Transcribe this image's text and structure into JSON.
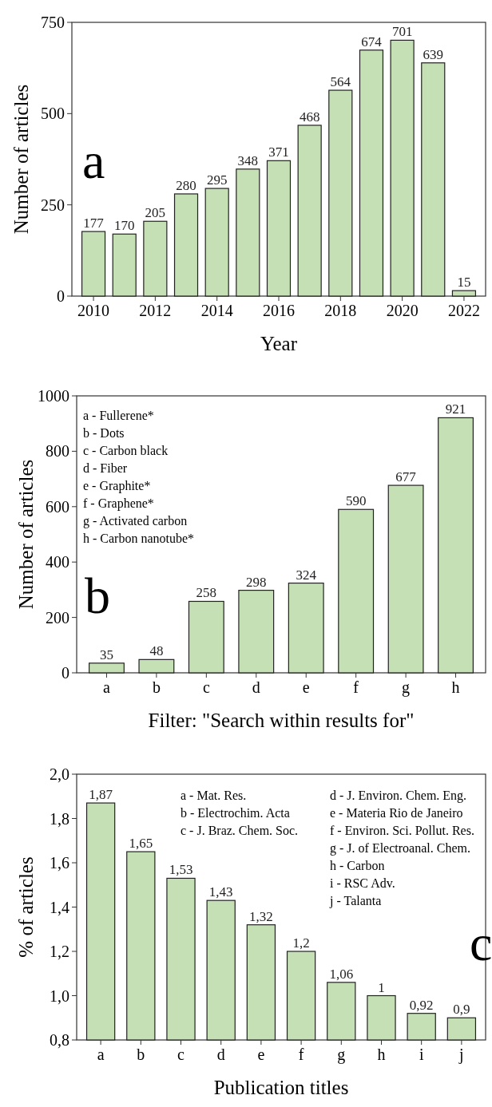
{
  "chart_data": [
    {
      "type": "bar",
      "xlabel": "Year",
      "ylabel": "Number of articles",
      "x": [
        2010,
        2011,
        2012,
        2013,
        2014,
        2015,
        2016,
        2017,
        2018,
        2019,
        2020,
        2021,
        2022
      ],
      "values": [
        177,
        170,
        205,
        280,
        295,
        348,
        371,
        468,
        564,
        674,
        701,
        639,
        15
      ],
      "color": "#c5e0b4",
      "data_labels": true,
      "xlim": [
        2009.3,
        2022.7
      ],
      "xticks": [
        2010,
        2012,
        2014,
        2016,
        2018,
        2020,
        2022
      ],
      "ylim": [
        0,
        750
      ],
      "yticks": [
        0,
        250,
        500,
        750
      ],
      "annotations": [
        "a"
      ]
    },
    {
      "type": "bar",
      "xlabel": "Filter: \"Search within results for\"",
      "ylabel": "Number of articles",
      "categories": [
        "a",
        "b",
        "c",
        "d",
        "e",
        "f",
        "g",
        "h"
      ],
      "values": [
        35,
        48,
        258,
        298,
        324,
        590,
        677,
        921
      ],
      "color": "#c5e0b4",
      "data_labels": true,
      "ylim": [
        0,
        1000
      ],
      "yticks": [
        0,
        200,
        400,
        600,
        800,
        1000
      ],
      "annotations": [
        "b",
        "a - Fullerene*",
        "b - Dots",
        "c - Carbon black",
        "d - Fiber",
        "e - Graphite*",
        "f - Graphene*",
        "g - Activated carbon",
        "h - Carbon nanotube*"
      ]
    },
    {
      "type": "bar",
      "xlabel": "Publication titles",
      "ylabel": "% of articles",
      "categories": [
        "a",
        "b",
        "c",
        "d",
        "e",
        "f",
        "g",
        "h",
        "i",
        "j"
      ],
      "values": [
        1.87,
        1.65,
        1.53,
        1.43,
        1.32,
        1.2,
        1.06,
        1.0,
        0.92,
        0.9
      ],
      "value_labels": [
        "1,87",
        "1,65",
        "1,53",
        "1,43",
        "1,32",
        "1,2",
        "1,06",
        "1",
        "0,92",
        "0,9"
      ],
      "color": "#c5e0b4",
      "ylim": [
        0.8,
        2.0
      ],
      "yticks": [
        {
          "value": 0.8,
          "label": "0,8"
        },
        {
          "value": 1.0,
          "label": "1,0"
        },
        {
          "value": 1.2,
          "label": "1,2"
        },
        {
          "value": 1.4,
          "label": "1,4"
        },
        {
          "value": 1.6,
          "label": "1,6"
        },
        {
          "value": 1.8,
          "label": "1,8"
        },
        {
          "value": 2.0,
          "label": "2,0"
        }
      ],
      "annotations": [
        "c",
        "a - Mat. Res.",
        "b - Electrochim. Acta",
        "c - J. Braz. Chem. Soc.",
        "d - J. Environ. Chem. Eng.",
        "e - Materia Rio de Janeiro",
        "f - Environ. Sci. Pollut. Res.",
        "g - J. of Electroanal. Chem.",
        "h - Carbon",
        "i - RSC Adv.",
        "j - Talanta"
      ]
    }
  ]
}
